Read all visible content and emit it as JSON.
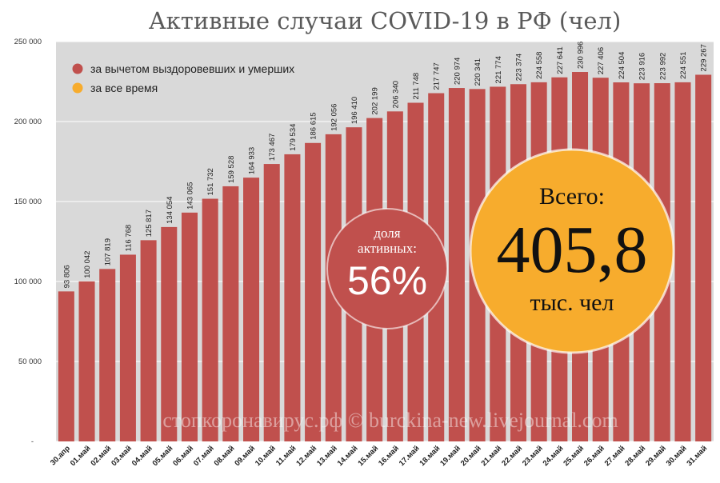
{
  "chart_data": {
    "type": "bar",
    "title": "Активные случаи COVID-19 в РФ (чел)",
    "categories": [
      "30.апр",
      "01.май",
      "02.май",
      "03.май",
      "04.май",
      "05.май",
      "06.май",
      "07.май",
      "08.май",
      "09.май",
      "10.май",
      "11.май",
      "12.май",
      "13.май",
      "14.май",
      "15.май",
      "16.май",
      "17.май",
      "18.май",
      "19.май",
      "20.май",
      "21.май",
      "22.май",
      "23.май",
      "24.май",
      "25.май",
      "26.май",
      "27.май",
      "28.май",
      "29.май",
      "30.май",
      "31.май"
    ],
    "series": [
      {
        "name": "за вычетом выздоровевших и умерших",
        "color": "#c0504d",
        "values": [
          93806,
          100042,
          107819,
          116768,
          125817,
          134054,
          143065,
          151732,
          159528,
          164933,
          173467,
          179534,
          186615,
          192056,
          196410,
          202199,
          206340,
          211748,
          217747,
          220974,
          220341,
          221774,
          223374,
          224558,
          227641,
          230996,
          227406,
          224504,
          223916,
          223992,
          224551,
          229267
        ],
        "labels": [
          "93 806",
          "100 042",
          "107 819",
          "116 768",
          "125 817",
          "134 054",
          "143 065",
          "151 732",
          "159 528",
          "164 933",
          "173 467",
          "179 534",
          "186 615",
          "192 056",
          "196 410",
          "202 199",
          "206 340",
          "211 748",
          "217 747",
          "220 974",
          "220 341",
          "221 774",
          "223 374",
          "224 558",
          "227 641",
          "230 996",
          "227 406",
          "224 504",
          "223 916",
          "223 992",
          "224 551",
          "229 267"
        ]
      },
      {
        "name": "за все время",
        "color": "#f7ac2d"
      }
    ],
    "ylim": [
      0,
      250000
    ],
    "yticks": [
      {
        "value": 0,
        "label": "-"
      },
      {
        "value": 50000,
        "label": "50 000"
      },
      {
        "value": 100000,
        "label": "100 000"
      },
      {
        "value": 150000,
        "label": "150 000"
      },
      {
        "value": 200000,
        "label": "200 000"
      },
      {
        "value": 250000,
        "label": "250 000"
      }
    ],
    "grid": true,
    "legend": "top-left",
    "plot_background": "#d9d9d9"
  },
  "annotations": {
    "share": {
      "caption_line1": "доля",
      "caption_line2": "активных:",
      "value": "56%",
      "color": "#c0504d"
    },
    "total": {
      "caption": "Всего:",
      "value": "405,8",
      "unit": "тыс. чел",
      "color": "#f7ac2d"
    }
  },
  "watermark": "стопкоронавирус.рф © burckina-new.livejournal.com"
}
